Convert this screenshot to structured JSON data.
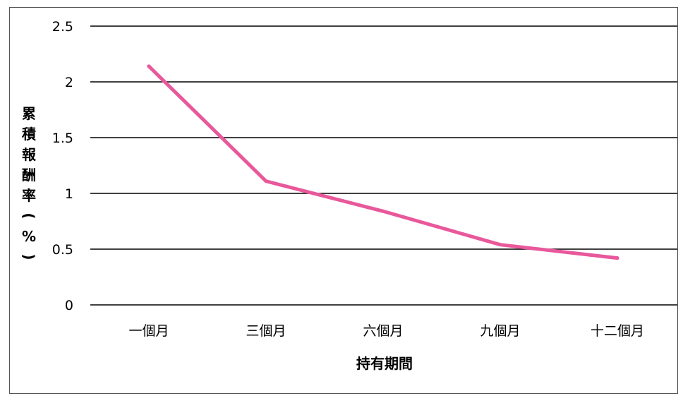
{
  "chart_data": {
    "type": "line",
    "title": "",
    "xlabel": "持有期間",
    "ylabel": "累積報酬率(%)",
    "ylabel_chars": [
      "累",
      "積",
      "報",
      "酬",
      "率",
      "(",
      "%",
      ")"
    ],
    "categories": [
      "一個月",
      "三個月",
      "六個月",
      "九個月",
      "十二個月"
    ],
    "series": [
      {
        "values": [
          2.14,
          1.11,
          0.84,
          0.54,
          0.42
        ],
        "color": "#e8589b"
      }
    ],
    "ylim": [
      0,
      2.5
    ],
    "yticks": [
      "0",
      "0.5",
      "1",
      "1.5",
      "2",
      "2.5"
    ],
    "grid": true,
    "legend": "none"
  }
}
